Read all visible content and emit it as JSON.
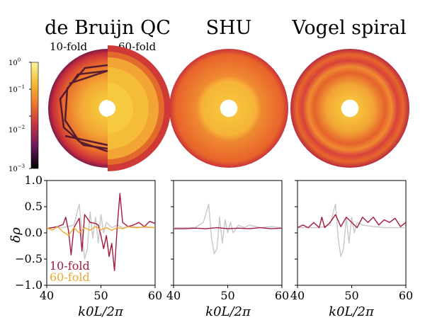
{
  "figure": {
    "top_titles": [
      "de Bruijn QC",
      "SHU",
      "Vogel spiral"
    ],
    "panel1_labels": [
      "10-fold",
      "60-fold"
    ],
    "colorbar": {
      "ticks": [
        "10",
        "10",
        "10",
        "10"
      ],
      "exponents": [
        "0",
        "−1",
        "−2",
        "−3"
      ],
      "values": [
        1,
        0.1,
        0.01,
        0.001
      ]
    },
    "colors": {
      "ten_fold": "#a31a3c",
      "sixty_fold": "#f0a830",
      "reference": "#c8c8c8"
    }
  },
  "chart_data": [
    {
      "type": "line",
      "panel": "de Bruijn QC",
      "xlabel": "k0L/2π",
      "ylabel": "δρ",
      "xlim": [
        40,
        60
      ],
      "ylim": [
        -1.0,
        1.0
      ],
      "xticks": [
        "40",
        "50",
        "60"
      ],
      "yticks": [
        "1.0",
        "0.5",
        "0.0",
        "−0.5",
        "−1.0"
      ],
      "legend": [
        "10-fold",
        "60-fold"
      ],
      "series": [
        {
          "name": "10-fold",
          "color": "#a31a3c",
          "x": [
            40,
            41,
            42,
            43,
            43.5,
            44,
            44.5,
            45,
            46,
            46.5,
            47,
            48,
            49,
            49.5,
            50,
            50.5,
            51,
            51.5,
            52,
            52.5,
            53,
            53.5,
            54,
            55,
            56,
            57,
            58,
            59,
            60
          ],
          "y": [
            0.08,
            0.1,
            0.12,
            0.16,
            0.3,
            0.05,
            -0.42,
            0.1,
            0.28,
            -0.35,
            0.35,
            0.2,
            0.18,
            0.15,
            -0.05,
            -0.3,
            -0.05,
            -0.45,
            -0.2,
            -0.72,
            0.1,
            0.75,
            0.2,
            0.12,
            0.15,
            0.2,
            0.12,
            0.22,
            0.18
          ]
        },
        {
          "name": "60-fold",
          "color": "#f0a830",
          "x": [
            40,
            41,
            42,
            43,
            44,
            45,
            46,
            47,
            48,
            49,
            50,
            51,
            52,
            53,
            54,
            55,
            56,
            57,
            58,
            59,
            60
          ],
          "y": [
            0.1,
            0.05,
            0.12,
            0.02,
            -0.05,
            0.1,
            0.0,
            0.1,
            0.05,
            0.12,
            0.06,
            0.1,
            0.05,
            0.1,
            0.08,
            0.12,
            0.1,
            0.1,
            0.12,
            0.11,
            0.1
          ]
        },
        {
          "name": "reference",
          "color": "#c8c8c8",
          "x": [
            40,
            43,
            45,
            46,
            46.5,
            47,
            47.5,
            48,
            48.5,
            49,
            49.5,
            50,
            50.5,
            51,
            52,
            53,
            54,
            56,
            58,
            60
          ],
          "y": [
            0.1,
            0.1,
            0.15,
            0.55,
            0.0,
            -0.5,
            -0.3,
            0.4,
            -0.1,
            0.3,
            -0.2,
            0.35,
            0.0,
            0.2,
            0.1,
            0.15,
            0.1,
            0.12,
            0.1,
            0.1
          ]
        }
      ]
    },
    {
      "type": "line",
      "panel": "SHU",
      "xlabel": "k0L/2π",
      "xlim": [
        40,
        60
      ],
      "ylim": [
        -1.0,
        1.0
      ],
      "xticks": [
        "40",
        "50",
        "60"
      ],
      "series": [
        {
          "name": "10-fold",
          "color": "#a31a3c",
          "x": [
            40,
            42,
            44,
            46,
            48,
            50,
            52,
            54,
            56,
            58,
            60
          ],
          "y": [
            0.08,
            0.08,
            0.09,
            0.08,
            0.1,
            0.08,
            0.09,
            0.08,
            0.1,
            0.08,
            0.09
          ]
        },
        {
          "name": "reference",
          "color": "#c8c8c8",
          "x": [
            40,
            44,
            45.5,
            46.5,
            47,
            47.5,
            48,
            48.5,
            49,
            49.5,
            50,
            50.5,
            51,
            52,
            53,
            54,
            56,
            58,
            60
          ],
          "y": [
            0.1,
            0.1,
            0.2,
            0.55,
            -0.1,
            -0.4,
            -0.3,
            0.3,
            -0.2,
            0.25,
            0.0,
            0.2,
            0.0,
            0.15,
            0.1,
            0.15,
            0.1,
            0.12,
            0.1
          ]
        }
      ]
    },
    {
      "type": "line",
      "panel": "Vogel spiral",
      "xlabel": "k0L/2π",
      "xlim": [
        40,
        60
      ],
      "ylim": [
        -1.0,
        1.0
      ],
      "xticks": [
        "40",
        "50",
        "60"
      ],
      "series": [
        {
          "name": "10-fold",
          "color": "#a31a3c",
          "x": [
            40,
            41,
            42,
            43,
            44,
            44.5,
            45,
            46,
            47,
            48,
            49,
            50,
            51,
            52,
            53,
            54,
            55,
            56,
            57,
            58,
            59,
            60
          ],
          "y": [
            0.1,
            0.15,
            0.1,
            0.2,
            0.1,
            0.3,
            0.1,
            0.2,
            0.35,
            0.12,
            0.3,
            0.2,
            0.1,
            0.3,
            0.2,
            0.3,
            0.15,
            0.25,
            0.2,
            0.28,
            0.12,
            0.2
          ]
        },
        {
          "name": "reference",
          "color": "#c8c8c8",
          "x": [
            40,
            44,
            46,
            47,
            47.5,
            48,
            48.5,
            49,
            49.5,
            50,
            50.5,
            51,
            52,
            54,
            56,
            58,
            60
          ],
          "y": [
            0.1,
            0.1,
            0.15,
            0.55,
            -0.1,
            -0.45,
            -0.3,
            0.3,
            -0.2,
            0.3,
            0.0,
            0.2,
            0.15,
            0.12,
            0.1,
            0.1,
            0.1
          ]
        }
      ]
    }
  ]
}
